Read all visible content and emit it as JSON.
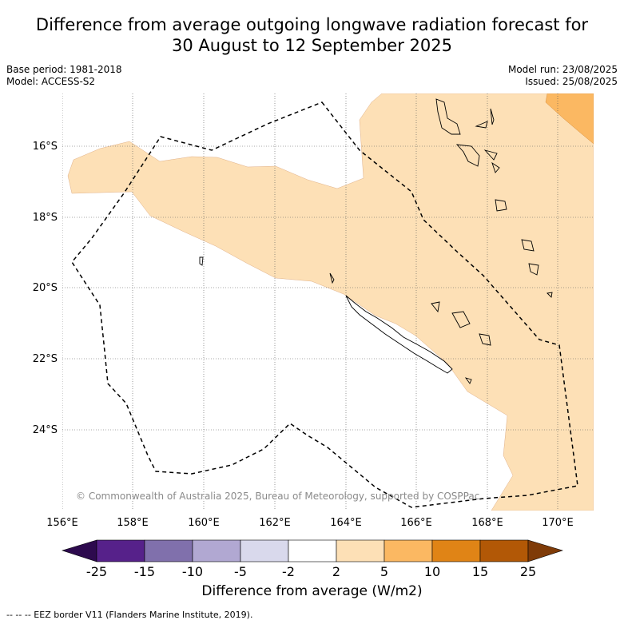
{
  "title_line1": "Difference from average outgoing longwave radiation forecast for",
  "title_line2": "30 August to 12 September 2025",
  "base_period": "Base period: 1981-2018",
  "model": "Model: ACCESS-S2",
  "model_run": "Model run: 23/08/2025",
  "issued": "Issued: 25/08/2025",
  "copyright": "© Commonwealth of Australia 2025, Bureau of Meteorology, supported by COSPPac",
  "x_ticks": [
    "156°E",
    "158°E",
    "160°E",
    "162°E",
    "164°E",
    "166°E",
    "168°E",
    "170°E"
  ],
  "y_ticks": [
    "16°S",
    "18°S",
    "20°S",
    "22°S",
    "24°S"
  ],
  "colorbar": {
    "ticks": [
      "-25",
      "-15",
      "-10",
      "-5",
      "-2",
      "2",
      "5",
      "10",
      "15",
      "25"
    ],
    "colors": [
      "#2d0a4e",
      "#56218a",
      "#8070ac",
      "#b1a8d2",
      "#d9d9ec",
      "#ffffff",
      "#fde0b6",
      "#fbb862",
      "#e08416",
      "#b25806",
      "#7f3b08"
    ],
    "label": "Difference from average (W/m2)"
  },
  "eez_note": "--  --  -- EEZ border V11 (Flanders Marine Institute, 2019).",
  "fill_colors": {
    "light_orange": "#fde0b6",
    "orange": "#fbb862"
  }
}
